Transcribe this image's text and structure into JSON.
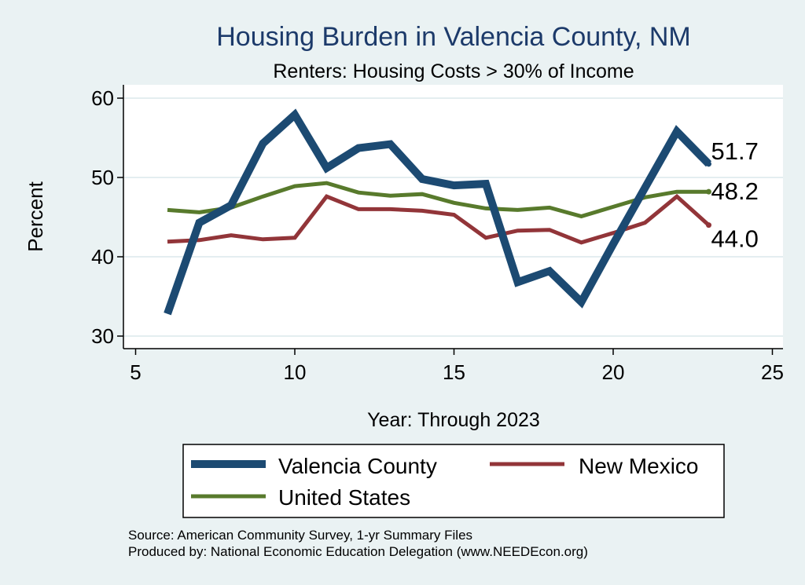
{
  "chart_data": {
    "type": "line",
    "title": "Housing Burden in Valencia County, NM",
    "subtitle": "Renters: Housing Costs > 30% of Income",
    "xlabel": "Year: Through 2023",
    "ylabel": "Percent",
    "xlim": [
      5,
      25
    ],
    "ylim": [
      30,
      60
    ],
    "x_ticks": [
      5,
      10,
      15,
      20,
      25
    ],
    "y_ticks": [
      30,
      40,
      50,
      60
    ],
    "grid": true,
    "legend_position": "bottom",
    "x": [
      6,
      7,
      8,
      9,
      10,
      11,
      12,
      13,
      14,
      15,
      16,
      17,
      18,
      19,
      20,
      21,
      22,
      23
    ],
    "series": [
      {
        "name": "Valencia County",
        "color": "#1c4a72",
        "values": [
          32.8,
          44.3,
          46.5,
          54.3,
          57.9,
          51.2,
          53.7,
          54.2,
          49.8,
          49.0,
          49.2,
          36.8,
          38.2,
          34.3,
          41.6,
          48.7,
          55.8,
          51.7
        ],
        "end_label": "51.7"
      },
      {
        "name": "New Mexico",
        "color": "#923539",
        "values": [
          41.9,
          42.1,
          42.7,
          42.2,
          42.4,
          47.6,
          46.0,
          46.0,
          45.8,
          45.3,
          42.4,
          43.3,
          43.4,
          41.8,
          43.0,
          44.3,
          47.6,
          44.0
        ],
        "end_label": "44.0"
      },
      {
        "name": "United States",
        "color": "#587a2c",
        "values": [
          45.9,
          45.6,
          46.2,
          47.6,
          48.9,
          49.3,
          48.1,
          47.7,
          47.9,
          46.8,
          46.1,
          45.9,
          46.2,
          45.1,
          46.3,
          47.5,
          48.2,
          48.2
        ],
        "end_label": "48.2"
      }
    ],
    "legend": {
      "entries": [
        "Valencia County",
        "New Mexico",
        "United States"
      ]
    },
    "source_note": "Source: American Community Survey, 1-yr Summary Files",
    "produced_note": "Produced by: National Economic Education Delegation (www.NEEDEcon.org)"
  },
  "colors": {
    "background": "#eaf2f3",
    "plot_background": "#ffffff",
    "title": "#1c3a6a",
    "gridline": "#e4eef0",
    "axis": "#000000"
  }
}
